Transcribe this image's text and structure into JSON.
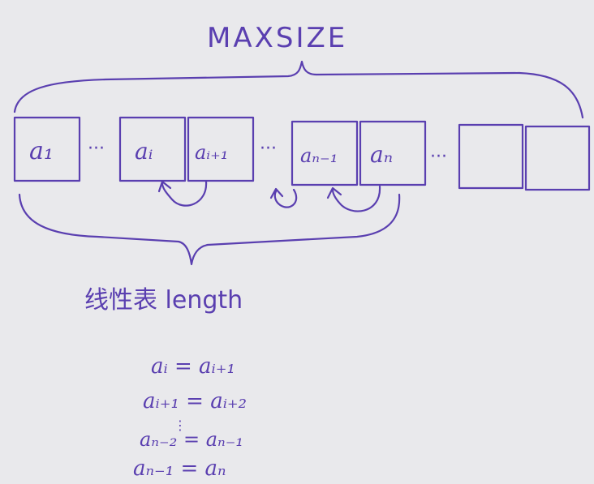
{
  "title": "MAXSIZE",
  "cells": [
    {
      "label": "a₁"
    },
    {
      "label": "aᵢ"
    },
    {
      "label": "aᵢ₊₁"
    },
    {
      "label": "aₙ₋₁"
    },
    {
      "label": "aₙ"
    },
    {
      "label": ""
    },
    {
      "label": ""
    }
  ],
  "ellipsis": "···",
  "length_label": "线性表 length",
  "equations": [
    "aᵢ = aᵢ₊₁",
    "aᵢ₊₁ = aᵢ₊₂",
    "aₙ₋₂ = aₙ₋₁",
    "aₙ₋₁ = aₙ"
  ],
  "colors": {
    "ink": "#5a3fb0",
    "paper": "#e9e9ec"
  }
}
